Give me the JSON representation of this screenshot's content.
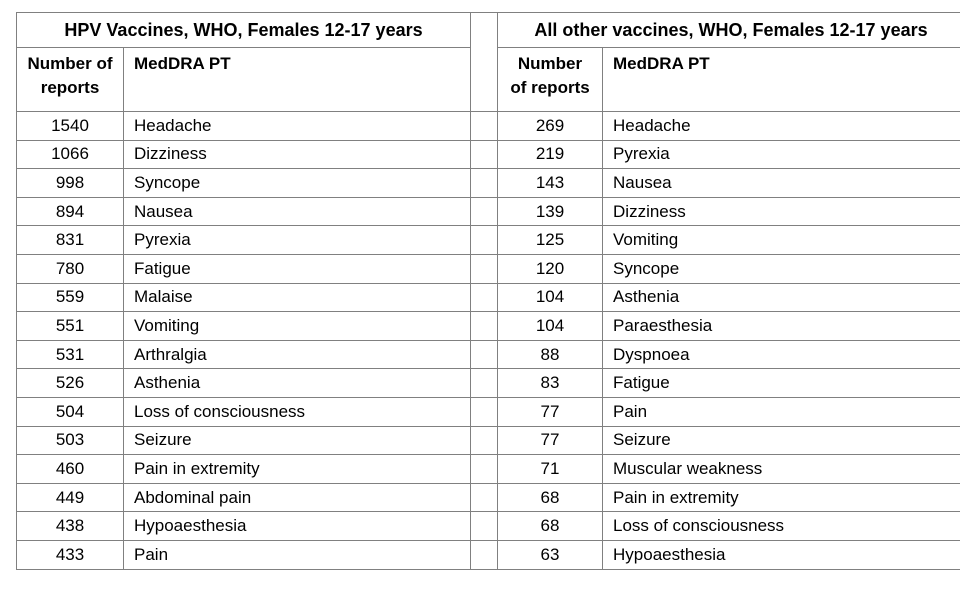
{
  "tables": [
    {
      "title": "HPV Vaccines, WHO, Females 12-17 years",
      "col_count": "Number of reports",
      "col_pt": "MedDRA PT",
      "rows": [
        [
          "1540",
          "Headache"
        ],
        [
          "1066",
          "Dizziness"
        ],
        [
          "998",
          "Syncope"
        ],
        [
          "894",
          "Nausea"
        ],
        [
          "831",
          "Pyrexia"
        ],
        [
          "780",
          "Fatigue"
        ],
        [
          "559",
          "Malaise"
        ],
        [
          "551",
          "Vomiting"
        ],
        [
          "531",
          "Arthralgia"
        ],
        [
          "526",
          "Asthenia"
        ],
        [
          "504",
          "Loss of consciousness"
        ],
        [
          "503",
          "Seizure"
        ],
        [
          "460",
          "Pain in extremity"
        ],
        [
          "449",
          "Abdominal pain"
        ],
        [
          "438",
          "Hypoaesthesia"
        ],
        [
          "433",
          "Pain"
        ]
      ]
    },
    {
      "title": "All other vaccines, WHO, Females 12-17 years",
      "col_count": "Number of reports",
      "col_pt": "MedDRA PT",
      "rows": [
        [
          "269",
          "Headache"
        ],
        [
          "219",
          "Pyrexia"
        ],
        [
          "143",
          "Nausea"
        ],
        [
          "139",
          "Dizziness"
        ],
        [
          "125",
          "Vomiting"
        ],
        [
          "120",
          "Syncope"
        ],
        [
          "104",
          "Asthenia"
        ],
        [
          "104",
          "Paraesthesia"
        ],
        [
          "88",
          "Dyspnoea"
        ],
        [
          "83",
          "Fatigue"
        ],
        [
          "77",
          "Pain"
        ],
        [
          "77",
          "Seizure"
        ],
        [
          "71",
          "Muscular weakness"
        ],
        [
          "68",
          "Pain in extremity"
        ],
        [
          "68",
          "Loss of consciousness"
        ],
        [
          "63",
          "Hypoaesthesia"
        ]
      ]
    }
  ]
}
